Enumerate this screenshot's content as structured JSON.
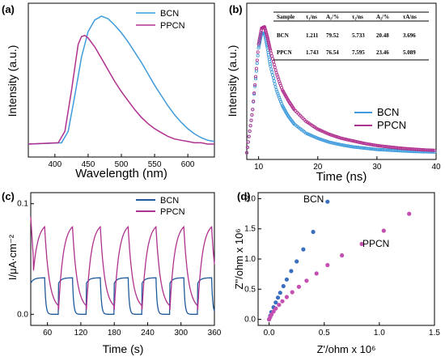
{
  "colors": {
    "bcn": "#3f9bdc",
    "ppcn": "#b0308f",
    "bcn_dark": "#1f5a9a",
    "bcn_dot": "#3a6fc0",
    "ppcn_dot": "#c44fb0"
  },
  "chart_data": [
    {
      "panel": "(a)",
      "type": "line",
      "xlabel": "Wavelength (nm)",
      "ylabel": "Intensity (a.u.)",
      "xlim": [
        360,
        640
      ],
      "xticks": [
        400,
        450,
        500,
        550,
        600
      ],
      "ylim": [
        0,
        1
      ],
      "legend": "top-right",
      "series": [
        {
          "name": "BCN",
          "x": [
            360,
            410,
            420,
            430,
            440,
            450,
            460,
            470,
            480,
            490,
            500,
            510,
            520,
            530,
            540,
            550,
            560,
            570,
            580,
            590,
            600,
            610,
            620,
            630,
            640
          ],
          "y": [
            0,
            0.01,
            0.1,
            0.38,
            0.68,
            0.88,
            0.97,
            1.0,
            0.98,
            0.93,
            0.87,
            0.8,
            0.72,
            0.64,
            0.55,
            0.46,
            0.38,
            0.3,
            0.23,
            0.17,
            0.12,
            0.08,
            0.05,
            0.03,
            0.02
          ]
        },
        {
          "name": "PPCN",
          "x": [
            360,
            405,
            415,
            425,
            435,
            440,
            445,
            450,
            460,
            470,
            480,
            490,
            500,
            510,
            520,
            530,
            540,
            550,
            560,
            570,
            580,
            590,
            600,
            610,
            620,
            630,
            640
          ],
          "y": [
            0,
            0.01,
            0.1,
            0.42,
            0.78,
            0.84,
            0.85,
            0.83,
            0.76,
            0.67,
            0.58,
            0.49,
            0.41,
            0.34,
            0.27,
            0.21,
            0.16,
            0.12,
            0.09,
            0.06,
            0.04,
            0.03,
            0.02,
            0.01,
            0.01,
            0.0,
            0.0
          ]
        }
      ]
    },
    {
      "panel": "(b)",
      "type": "scatter",
      "xlabel": "Time (ns)",
      "ylabel": "Intensity (a.u.)",
      "xlim": [
        8,
        40
      ],
      "xticks": [
        10,
        20,
        30,
        40
      ],
      "ylim": [
        0,
        1
      ],
      "legend": "bottom-right",
      "series": [
        {
          "name": "BCN",
          "x": [
            8,
            9,
            10,
            10.5,
            11,
            11.5,
            12,
            13,
            14,
            15,
            16,
            18,
            20,
            22,
            24,
            26,
            28,
            30,
            32,
            34,
            36,
            38,
            40
          ],
          "y": [
            0.02,
            0.35,
            0.82,
            0.93,
            0.93,
            0.82,
            0.68,
            0.5,
            0.38,
            0.3,
            0.24,
            0.17,
            0.13,
            0.1,
            0.08,
            0.065,
            0.055,
            0.045,
            0.04,
            0.035,
            0.03,
            0.028,
            0.025
          ]
        },
        {
          "name": "PPCN",
          "x": [
            8,
            9,
            10,
            10.5,
            11,
            11.5,
            12,
            13,
            14,
            15,
            16,
            18,
            20,
            22,
            24,
            26,
            28,
            30,
            32,
            34,
            36,
            38,
            40
          ],
          "y": [
            0.02,
            0.35,
            0.85,
            0.97,
            0.98,
            0.9,
            0.8,
            0.63,
            0.5,
            0.42,
            0.35,
            0.26,
            0.2,
            0.16,
            0.13,
            0.11,
            0.09,
            0.075,
            0.065,
            0.055,
            0.048,
            0.042,
            0.038
          ]
        }
      ],
      "table": {
        "headers": [
          "Sample",
          "τ₁/ns",
          "A₁/%",
          "τ₂/ns",
          "A₂/%",
          "τA/ns"
        ],
        "rows": [
          [
            "BCN",
            "1.211",
            "79.52",
            "5.733",
            "20.48",
            "3.696"
          ],
          [
            "PPCN",
            "1.743",
            "76.54",
            "7.595",
            "23.46",
            "5.089"
          ]
        ]
      }
    },
    {
      "panel": "(c)",
      "type": "line",
      "xlabel": "Time (s)",
      "ylabel": "I/μA·cm⁻²",
      "xlim": [
        30,
        360
      ],
      "xticks": [
        60,
        120,
        180,
        240,
        300,
        360
      ],
      "ylim": [
        -0.01,
        0.11
      ],
      "yticks": [
        0.0,
        0.1
      ],
      "yticklabels": [
        "0.0",
        "0.1"
      ],
      "legend": "top-right",
      "on_off_period_s": 50,
      "series": [
        {
          "name": "BCN",
          "on_value": 0.033,
          "off_value": 0.0
        },
        {
          "name": "PPCN",
          "on_value": 0.083,
          "off_value": 0.004
        }
      ]
    },
    {
      "panel": "(d)",
      "type": "scatter",
      "xlabel": "Z'/ohm x 10⁶",
      "ylabel": "Z''/ohm x 10⁶",
      "xlim": [
        -0.1,
        1.5
      ],
      "xticks": [
        0.0,
        0.5,
        1.0,
        1.5
      ],
      "ylim": [
        -0.1,
        2.1
      ],
      "yticks": [
        0.0,
        0.5,
        1.0,
        1.5,
        2.0
      ],
      "annotations": [
        "BCN",
        "PPCN"
      ],
      "series": [
        {
          "name": "BCN",
          "x": [
            0.0,
            0.01,
            0.02,
            0.04,
            0.06,
            0.08,
            0.1,
            0.13,
            0.16,
            0.2,
            0.25,
            0.31,
            0.4,
            0.53
          ],
          "y": [
            0.0,
            0.06,
            0.12,
            0.2,
            0.28,
            0.36,
            0.44,
            0.55,
            0.66,
            0.8,
            0.96,
            1.16,
            1.45,
            1.95
          ]
        },
        {
          "name": "PPCN",
          "x": [
            0.0,
            0.01,
            0.02,
            0.04,
            0.06,
            0.09,
            0.12,
            0.16,
            0.21,
            0.27,
            0.34,
            0.43,
            0.53,
            0.66,
            0.84,
            1.04,
            1.27
          ],
          "y": [
            0.0,
            0.04,
            0.08,
            0.13,
            0.18,
            0.24,
            0.3,
            0.37,
            0.45,
            0.54,
            0.64,
            0.76,
            0.9,
            1.06,
            1.25,
            1.47,
            1.75
          ]
        }
      ]
    }
  ]
}
